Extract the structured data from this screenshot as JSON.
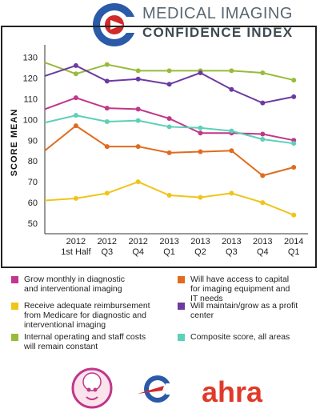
{
  "brand": {
    "line1": "MEDICAL IMAGING",
    "line2": "CONFIDENCE INDEX",
    "footer_logo_text": "ahra"
  },
  "colors": {
    "diagnostic": "#c0378b",
    "reimbursement": "#f0c419",
    "costs": "#97bc3a",
    "capital": "#e06b1e",
    "profit": "#6c3aa0",
    "composite": "#5cd0b8",
    "brand_blue": "#2a5aa8",
    "brand_red": "#d12a2a",
    "ahra_red": "#e03a2a"
  },
  "chart_data": {
    "type": "line",
    "categories": [
      [
        "",
        ""
      ],
      [
        "2012",
        "1st Half"
      ],
      [
        "2012",
        "Q3"
      ],
      [
        "2012",
        "Q4"
      ],
      [
        "2013",
        "Q1"
      ],
      [
        "2013",
        "Q2"
      ],
      [
        "2013",
        "Q3"
      ],
      [
        "2013",
        "Q4"
      ],
      [
        "2014",
        "Q1"
      ]
    ],
    "ylabel": "SCORE MEAN",
    "ylim": [
      45,
      136
    ],
    "yticks": [
      50,
      60,
      70,
      80,
      90,
      100,
      110,
      120,
      130
    ],
    "grid": false,
    "series": [
      {
        "key": "costs",
        "values": [
          127.5,
          122,
          126.5,
          123.5,
          123.5,
          123.5,
          123.5,
          122.5,
          119
        ]
      },
      {
        "key": "profit",
        "values": [
          121,
          126,
          118.5,
          119.5,
          117,
          122.5,
          114.5,
          108,
          111
        ]
      },
      {
        "key": "diagnostic",
        "values": [
          105,
          110.5,
          105.5,
          105,
          100.5,
          93.5,
          93.5,
          93,
          90
        ]
      },
      {
        "key": "composite",
        "values": [
          98.5,
          102,
          99,
          99.5,
          96.5,
          96,
          94.5,
          90.5,
          88.5
        ]
      },
      {
        "key": "capital",
        "values": [
          85,
          97,
          87,
          87,
          84,
          84.5,
          85,
          73,
          77
        ]
      },
      {
        "key": "reimbursement",
        "values": [
          61,
          62,
          64.5,
          70,
          63.5,
          62.5,
          64.5,
          60,
          54
        ]
      }
    ]
  },
  "legend": [
    {
      "key": "diagnostic",
      "label": "Grow monthly in diagnostic\nand interventional imaging"
    },
    {
      "key": "capital",
      "label": "Will have access to capital\nfor imaging equipment and\nIT needs"
    },
    {
      "key": "reimbursement",
      "label": "Receive adequate reimbursement\nfrom Medicare for diagnostic and\ninterventional imaging"
    },
    {
      "key": "profit",
      "label": "Will maintain/grow as a profit\ncenter"
    },
    {
      "key": "costs",
      "label": "Internal operating and staff costs\nwill remain constant"
    },
    {
      "key": "composite",
      "label": "Composite score, all areas"
    }
  ]
}
